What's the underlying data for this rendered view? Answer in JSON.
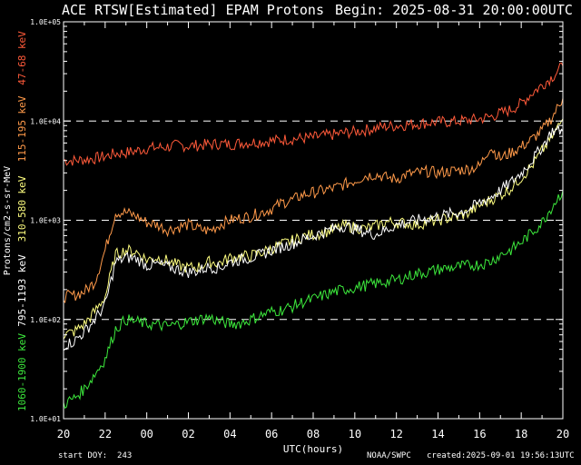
{
  "header": {
    "title": "ACE RTSW[Estimated] EPAM Protons",
    "begin": "Begin: 2025-08-31 20:00:00UTC"
  },
  "footer": {
    "start_doy": "start DOY:  243",
    "source": "NOAA/SWPC",
    "created": "created:2025-09-01 19:56:13UTC"
  },
  "colors": {
    "background": "#000000",
    "axis": "#ffffff",
    "ch1": "#ff5a3a",
    "ch2": "#ff9a4a",
    "ch3": "#ffff80",
    "ch4": "#ffffff",
    "ch5": "#3ce83c"
  },
  "chart_data": {
    "type": "line",
    "title": "ACE RTSW[Estimated] EPAM Protons",
    "xlabel": "UTC(hours)",
    "ylabel": "Protons/cm2-s-sr-MeV",
    "y_scale": "log",
    "ylim": [
      10,
      100000
    ],
    "xlim": [
      0,
      24
    ],
    "x_tick_labels": [
      "20",
      "22",
      "00",
      "02",
      "04",
      "06",
      "08",
      "10",
      "12",
      "14",
      "16",
      "18",
      "20"
    ],
    "y_tick_labels": [
      "1.0E+01",
      "1.0E+02",
      "1.0E+03",
      "1.0E+04",
      "1.0E+05"
    ],
    "dashed_reference_lines": [
      100,
      1000,
      10000
    ],
    "series": [
      {
        "name": "47-68 keV",
        "color": "#ff5a3a",
        "x": [
          0,
          0.5,
          1,
          1.5,
          2,
          2.5,
          3,
          3.5,
          4,
          4.5,
          5,
          5.5,
          6,
          6.5,
          7,
          7.5,
          8,
          8.5,
          9,
          9.5,
          10,
          10.5,
          11,
          11.5,
          12,
          12.5,
          13,
          13.5,
          14,
          14.5,
          15,
          15.5,
          16,
          16.5,
          17,
          17.5,
          18,
          18.5,
          19,
          19.5,
          20,
          20.5,
          21,
          21.5,
          22,
          22.5,
          23,
          23.5,
          24
        ],
        "y": [
          4000,
          4000,
          4100,
          4200,
          4400,
          4700,
          4800,
          5000,
          5300,
          5400,
          5500,
          5700,
          5600,
          5700,
          5800,
          5900,
          5800,
          6000,
          6100,
          6200,
          6300,
          6500,
          6600,
          6700,
          6800,
          7100,
          7300,
          7600,
          7800,
          8100,
          8500,
          8800,
          9000,
          9200,
          9400,
          9600,
          9800,
          9800,
          10000,
          10200,
          10500,
          11000,
          12000,
          13000,
          15000,
          19000,
          23000,
          28000,
          36000
        ]
      },
      {
        "name": "115-195 keV",
        "color": "#ff9a4a",
        "x": [
          0,
          0.5,
          1,
          1.5,
          2,
          2.5,
          3,
          3.5,
          4,
          4.5,
          5,
          5.5,
          6,
          6.5,
          7,
          7.5,
          8,
          8.5,
          9,
          9.5,
          10,
          10.5,
          11,
          11.5,
          12,
          12.5,
          13,
          13.5,
          14,
          14.5,
          15,
          15.5,
          16,
          16.5,
          17,
          17.5,
          18,
          18.5,
          19,
          19.5,
          20,
          20.5,
          21,
          21.5,
          22,
          22.5,
          23,
          23.5,
          24
        ],
        "y": [
          170,
          175,
          190,
          240,
          500,
          1200,
          1200,
          1100,
          950,
          900,
          800,
          850,
          900,
          820,
          780,
          900,
          1000,
          1050,
          1100,
          1200,
          1300,
          1500,
          1600,
          1800,
          1900,
          2000,
          2100,
          2300,
          2500,
          2800,
          2900,
          2700,
          2600,
          2900,
          3000,
          3100,
          3000,
          3100,
          3200,
          3300,
          3500,
          5500,
          4200,
          4800,
          5500,
          6500,
          8000,
          11000,
          17000
        ]
      },
      {
        "name": "310-580 keV",
        "color": "#ffff80",
        "x": [
          0,
          0.5,
          1,
          1.5,
          2,
          2.5,
          3,
          3.5,
          4,
          4.5,
          5,
          5.5,
          6,
          6.5,
          7,
          7.5,
          8,
          8.5,
          9,
          9.5,
          10,
          10.5,
          11,
          11.5,
          12,
          12.5,
          13,
          13.5,
          14,
          14.5,
          15,
          15.5,
          16,
          16.5,
          17,
          17.5,
          18,
          18.5,
          19,
          19.5,
          20,
          20.5,
          21,
          21.5,
          22,
          22.5,
          23,
          23.5,
          24
        ],
        "y": [
          70,
          75,
          90,
          120,
          170,
          450,
          500,
          480,
          400,
          420,
          390,
          350,
          330,
          340,
          380,
          370,
          420,
          430,
          440,
          470,
          520,
          570,
          620,
          680,
          720,
          750,
          800,
          880,
          850,
          820,
          870,
          960,
          950,
          930,
          900,
          960,
          1000,
          1050,
          1100,
          1200,
          1400,
          1600,
          1800,
          2100,
          2700,
          3500,
          5000,
          7000,
          10500
        ]
      },
      {
        "name": "795-1193 keV",
        "color": "#ffffff",
        "x": [
          0,
          0.5,
          1,
          1.5,
          2,
          2.5,
          3,
          3.5,
          4,
          4.5,
          5,
          5.5,
          6,
          6.5,
          7,
          7.5,
          8,
          8.5,
          9,
          9.5,
          10,
          10.5,
          11,
          11.5,
          12,
          12.5,
          13,
          13.5,
          14,
          14.5,
          15,
          15.5,
          16,
          16.5,
          17,
          17.5,
          18,
          18.5,
          19,
          19.5,
          20,
          20.5,
          21,
          21.5,
          22,
          22.5,
          23,
          23.5,
          24
        ],
        "y": [
          55,
          60,
          75,
          100,
          140,
          380,
          420,
          410,
          350,
          360,
          340,
          320,
          300,
          310,
          340,
          330,
          380,
          400,
          420,
          450,
          500,
          540,
          580,
          640,
          700,
          760,
          830,
          880,
          820,
          760,
          720,
          800,
          900,
          950,
          1000,
          1050,
          1100,
          1150,
          1200,
          1300,
          1500,
          1700,
          2000,
          2400,
          3000,
          4000,
          5500,
          8000,
          8000
        ]
      },
      {
        "name": "1060-1900 keV",
        "color": "#3ce83c",
        "x": [
          0,
          0.5,
          1,
          1.5,
          2,
          2.5,
          3,
          3.5,
          4,
          4.5,
          5,
          5.5,
          6,
          6.5,
          7,
          7.5,
          8,
          8.5,
          9,
          9.5,
          10,
          10.5,
          11,
          11.5,
          12,
          12.5,
          13,
          13.5,
          14,
          14.5,
          15,
          15.5,
          16,
          16.5,
          17,
          17.5,
          18,
          18.5,
          19,
          19.5,
          20,
          20.5,
          21,
          21.5,
          22,
          22.5,
          23,
          23.5,
          24
        ],
        "y": [
          14,
          16,
          20,
          28,
          40,
          80,
          100,
          95,
          90,
          88,
          85,
          90,
          95,
          100,
          105,
          95,
          90,
          92,
          100,
          110,
          120,
          125,
          135,
          150,
          160,
          175,
          190,
          200,
          210,
          220,
          230,
          240,
          250,
          270,
          290,
          300,
          320,
          330,
          340,
          350,
          360,
          380,
          450,
          500,
          600,
          750,
          950,
          1400,
          2000
        ]
      }
    ]
  }
}
